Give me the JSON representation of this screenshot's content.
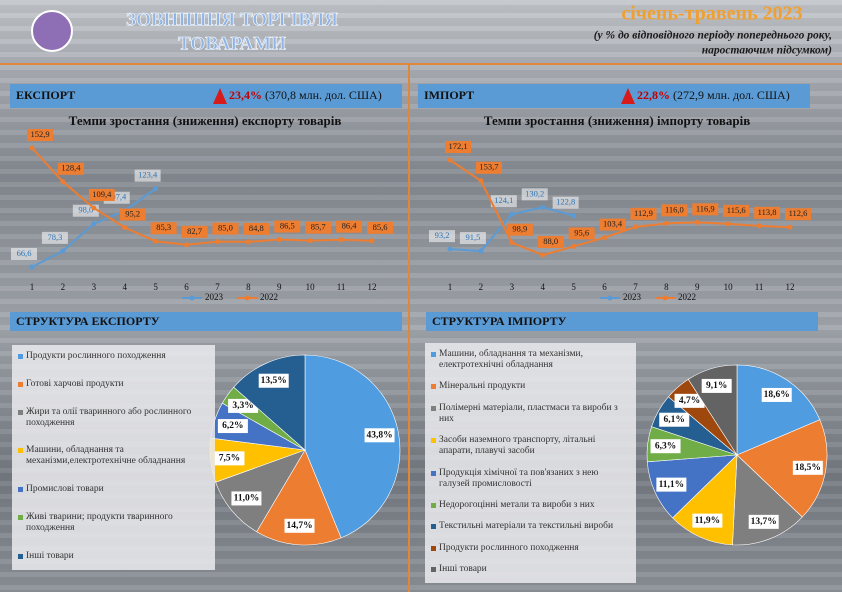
{
  "header": {
    "title_line1": "ЗОВНІШНЯ ТОРГІВЛЯ",
    "title_line2": "ТОВАРАМИ",
    "period": "січень-травень 2023",
    "note_line1": "(у % до відповідного періоду попереднього року,",
    "note_line2": "наростаючим підсумком)"
  },
  "panels": [
    {
      "label": "ЕКСПОРТ",
      "change": "23,4%",
      "total": "(370,8 млн. дол. США)"
    },
    {
      "label": "ІМПОРТ",
      "change": "22,8%",
      "total": "(272,9 млн. дол. США)"
    }
  ],
  "chart_data": [
    {
      "type": "line",
      "title": "Темпи зростання (зниження) експорту товарів",
      "x": [
        1,
        2,
        3,
        4,
        5,
        6,
        7,
        8,
        9,
        10,
        11,
        12
      ],
      "series": [
        {
          "name": "2023",
          "color": "#5b9bd5",
          "values": [
            66.6,
            78.3,
            98.0,
            107.4,
            123.4,
            null,
            null,
            null,
            null,
            null,
            null,
            null
          ],
          "value_labels": [
            "66,6",
            "78,3",
            "98,0",
            "107,4",
            "123,4",
            null,
            null,
            null,
            null,
            null,
            null,
            null
          ]
        },
        {
          "name": "2022",
          "color": "#ed7d31",
          "values": [
            152.9,
            128.4,
            109.4,
            95.2,
            85.3,
            82.7,
            85.0,
            84.8,
            86.5,
            85.7,
            86.4,
            85.6
          ],
          "value_labels": [
            "152,9",
            "128,4",
            "109,4",
            "95,2",
            "85,3",
            "82,7",
            "85,0",
            "84,8",
            "86,5",
            "85,7",
            "86,4",
            "85,6"
          ]
        }
      ]
    },
    {
      "type": "line",
      "title": "Темпи зростання (зниження) імпорту товарів",
      "x": [
        1,
        2,
        3,
        4,
        5,
        6,
        7,
        8,
        9,
        10,
        11,
        12
      ],
      "series": [
        {
          "name": "2023",
          "color": "#5b9bd5",
          "values": [
            93.2,
            91.5,
            124.1,
            130.2,
            122.8,
            null,
            null,
            null,
            null,
            null,
            null,
            null
          ],
          "value_labels": [
            "93,2",
            "91,5",
            "124,1",
            "130,2",
            "122,8",
            null,
            null,
            null,
            null,
            null,
            null,
            null
          ]
        },
        {
          "name": "2022",
          "color": "#ed7d31",
          "values": [
            172.1,
            153.7,
            98.9,
            88.0,
            95.6,
            103.4,
            112.9,
            116.0,
            116.9,
            115.6,
            113.8,
            112.6
          ],
          "value_labels": [
            "172,1",
            "153,7",
            "98,9",
            "88,0",
            "95,6",
            "103,4",
            "112,9",
            "116,0",
            "116,9",
            "115,6",
            "113,8",
            "112,6"
          ]
        }
      ]
    },
    {
      "type": "pie",
      "title": "СТРУКТУРА ЕКСПОРТУ",
      "categories": [
        "Продукти рослинного походження",
        "Готові харчові продукти",
        "Жири та олії тваринного або рослинного походження",
        "Машини, обладнання та механізми,електротехнічне обладнання",
        "Промислові товари",
        "Живі тварини; продукти тваринного походження",
        "Інші товари"
      ],
      "values": [
        43.8,
        14.7,
        11.0,
        7.5,
        6.2,
        3.3,
        13.5
      ],
      "value_labels": [
        "43,8%",
        "14,7%",
        "11,0%",
        "7,5%",
        "6,2%",
        "3,3%",
        "13,5%"
      ],
      "colors": [
        "#4f9de0",
        "#ed7d31",
        "#7f7f7f",
        "#ffc000",
        "#4472c4",
        "#70ad47",
        "#255e91"
      ]
    },
    {
      "type": "pie",
      "title": "СТРУКТУРА  ІМПОРТУ",
      "categories": [
        "Машини, обладнання та механізми, електротехнічні обладнання",
        "Мінеральні продукти",
        "Полімерні матеріали, пластмаси та вироби з них",
        "Засоби наземного транспорту, літальні апарати, плавучі засоби",
        "Продукція хімічної та пов'язаних з нею галузей промисловості",
        "Недорогоцінні метали та вироби з них",
        "Текстильні матеріали та текстильні вироби",
        "Продукти рослинного походження",
        "Інші товари"
      ],
      "values": [
        18.6,
        18.5,
        13.7,
        11.9,
        11.1,
        6.3,
        6.1,
        4.7,
        9.1
      ],
      "value_labels": [
        "18,6%",
        "18,5%",
        "13,7%",
        "11,9%",
        "11,1%",
        "6,3%",
        "6,1%",
        "4,7%",
        "9,1%"
      ],
      "colors": [
        "#4f9de0",
        "#ed7d31",
        "#7f7f7f",
        "#ffc000",
        "#4472c4",
        "#70ad47",
        "#255e91",
        "#9e480e",
        "#636363"
      ]
    }
  ]
}
